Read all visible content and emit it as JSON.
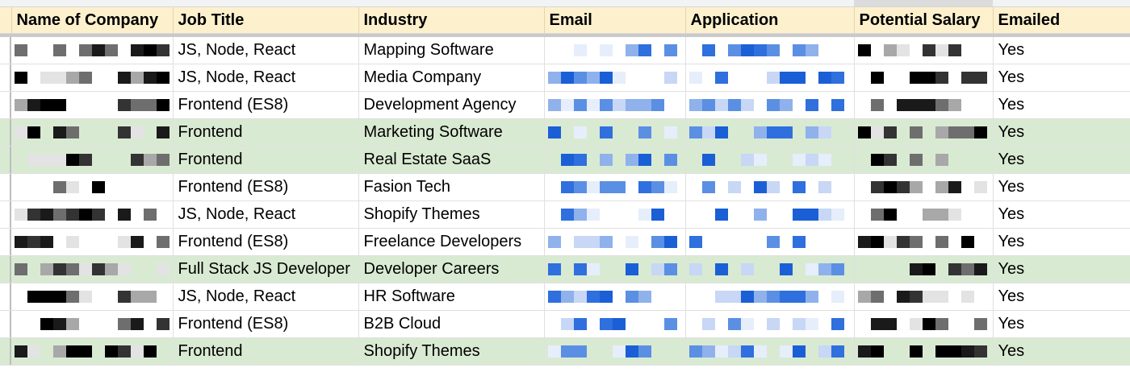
{
  "columns": {
    "company": "Name of Company",
    "job_title": "Job Title",
    "industry": "Industry",
    "email": "Email",
    "application": "Application",
    "potential_salary": "Potential Salary",
    "emailed": "Emailed"
  },
  "rows": [
    {
      "job_title": "JS, Node, React",
      "industry": "Mapping Software",
      "emailed": "Yes",
      "highlight": false
    },
    {
      "job_title": "JS, Node, React",
      "industry": "Media Company",
      "emailed": "Yes",
      "highlight": false
    },
    {
      "job_title": "Frontend (ES8)",
      "industry": "Development Agency",
      "emailed": "Yes",
      "highlight": false
    },
    {
      "job_title": "Frontend",
      "industry": "Marketing Software",
      "emailed": "Yes",
      "highlight": true
    },
    {
      "job_title": "Frontend",
      "industry": "Real Estate SaaS",
      "emailed": "Yes",
      "highlight": true
    },
    {
      "job_title": "Frontend (ES8)",
      "industry": "Fasion Tech",
      "emailed": "Yes",
      "highlight": false
    },
    {
      "job_title": "JS, Node, React",
      "industry": "Shopify Themes",
      "emailed": "Yes",
      "highlight": false
    },
    {
      "job_title": "Frontend (ES8)",
      "industry": "Freelance Developers",
      "emailed": "Yes",
      "highlight": false
    },
    {
      "job_title": "Full Stack JS Developer",
      "industry": "Developer Careers",
      "emailed": "Yes",
      "highlight": true
    },
    {
      "job_title": "JS, Node, React",
      "industry": "HR Software",
      "emailed": "Yes",
      "highlight": false
    },
    {
      "job_title": "Frontend (ES8)",
      "industry": "B2B Cloud",
      "emailed": "Yes",
      "highlight": false
    },
    {
      "job_title": "Frontend",
      "industry": "Shopify Themes",
      "emailed": "Yes",
      "highlight": true
    }
  ],
  "colors": {
    "header_bg": "#fdf0cd",
    "highlight_row": "#d9ead3",
    "pixel_blue": "#1a5fd6",
    "pixel_dark": "#1a1a1a"
  },
  "redaction": "pixelated"
}
